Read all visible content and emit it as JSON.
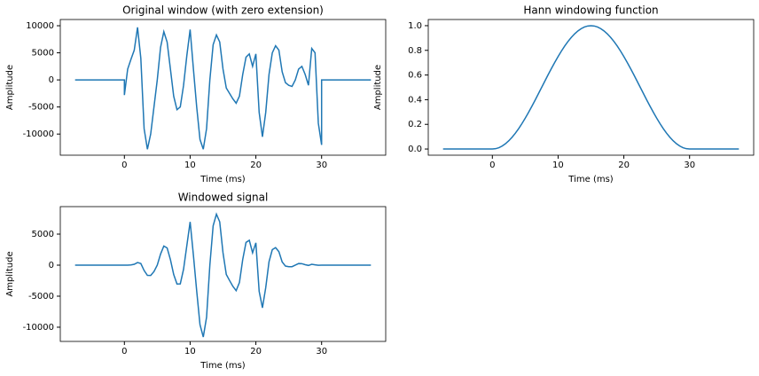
{
  "chart_data": [
    {
      "type": "line",
      "title": "Original window (with zero extension)",
      "xlabel": "Time (ms)",
      "ylabel": "Amplitude",
      "color": "#1f77b4",
      "x": [
        -7.5,
        0,
        0,
        0.5,
        1,
        1.5,
        2,
        2.5,
        3,
        3.5,
        4,
        4.5,
        5,
        5.5,
        6,
        6.5,
        7,
        7.5,
        8,
        8.5,
        9,
        9.5,
        10,
        10.5,
        11,
        11.5,
        12,
        12.5,
        13,
        13.5,
        14,
        14.5,
        15,
        15.5,
        16,
        16.5,
        17,
        17.5,
        18,
        18.5,
        19,
        19.5,
        20,
        20.5,
        21,
        21.5,
        22,
        22.5,
        23,
        23.5,
        24,
        24.5,
        25,
        25.5,
        26,
        26.5,
        27,
        27.5,
        28,
        28.5,
        29,
        29.5,
        30,
        30,
        37.5
      ],
      "values": [
        0,
        0,
        -2800,
        2000,
        3800,
        5500,
        9700,
        4000,
        -9000,
        -12800,
        -10000,
        -5000,
        0,
        6000,
        8900,
        7000,
        2000,
        -3000,
        -5500,
        -5000,
        -1000,
        4500,
        9300,
        2000,
        -5000,
        -11000,
        -12800,
        -9000,
        0,
        6500,
        8300,
        7000,
        2000,
        -1500,
        -2500,
        -3500,
        -4300,
        -3000,
        1000,
        4200,
        4800,
        2500,
        4800,
        -6000,
        -10500,
        -6000,
        1000,
        5000,
        6300,
        5500,
        1500,
        -500,
        -1000,
        -1200,
        0,
        2000,
        2500,
        1000,
        -1000,
        5800,
        5000,
        -8000,
        -12000,
        0,
        0
      ],
      "xlim": [
        -9.75,
        39.75
      ],
      "xticks": [
        0,
        10,
        20,
        30
      ],
      "ylim": [
        -13900,
        11150
      ],
      "yticks": [
        -10000,
        -5000,
        0,
        5000,
        10000
      ]
    },
    {
      "type": "line",
      "title": "Hann windowing function",
      "xlabel": "Time (ms)",
      "ylabel": "Amplitude",
      "color": "#1f77b4",
      "x": [
        -7.5,
        0,
        0,
        0.5,
        1,
        1.5,
        2,
        2.5,
        3,
        3.5,
        4,
        4.5,
        5,
        5.5,
        6,
        6.5,
        7,
        7.5,
        8,
        8.5,
        9,
        9.5,
        10,
        10.5,
        11,
        11.5,
        12,
        12.5,
        13,
        13.5,
        14,
        14.5,
        15,
        15.5,
        16,
        16.5,
        17,
        17.5,
        18,
        18.5,
        19,
        19.5,
        20,
        20.5,
        21,
        21.5,
        22,
        22.5,
        23,
        23.5,
        24,
        24.5,
        25,
        25.5,
        26,
        26.5,
        27,
        27.5,
        28,
        28.5,
        29,
        29.5,
        30,
        30,
        37.5
      ],
      "values": [
        0,
        0,
        0,
        0.0027,
        0.0109,
        0.0245,
        0.0432,
        0.067,
        0.0955,
        0.1284,
        0.1654,
        0.2061,
        0.25,
        0.2966,
        0.3455,
        0.396,
        0.4477,
        0.5,
        0.5523,
        0.604,
        0.6545,
        0.7034,
        0.75,
        0.7939,
        0.8346,
        0.8716,
        0.9045,
        0.933,
        0.9568,
        0.9755,
        0.9891,
        0.9973,
        1,
        0.9973,
        0.9891,
        0.9755,
        0.9568,
        0.933,
        0.9045,
        0.8716,
        0.8346,
        0.7939,
        0.75,
        0.7034,
        0.6545,
        0.604,
        0.5523,
        0.5,
        0.4477,
        0.396,
        0.3455,
        0.2966,
        0.25,
        0.2061,
        0.1654,
        0.1284,
        0.0955,
        0.067,
        0.0432,
        0.0245,
        0.0109,
        0.0027,
        0,
        0,
        0
      ],
      "xlim": [
        -9.75,
        39.75
      ],
      "xticks": [
        0,
        10,
        20,
        30
      ],
      "ylim": [
        -0.05,
        1.05
      ],
      "yticks": [
        {
          "value": 0,
          "label": "0.0"
        },
        0.2,
        0.4,
        0.6,
        0.8,
        {
          "value": 1,
          "label": "1.0"
        }
      ]
    },
    {
      "type": "line",
      "title": "Windowed signal",
      "xlabel": "Time (ms)",
      "ylabel": "Amplitude",
      "color": "#1f77b4",
      "x": [
        -7.5,
        0,
        0,
        0.5,
        1,
        1.5,
        2,
        2.5,
        3,
        3.5,
        4,
        4.5,
        5,
        5.5,
        6,
        6.5,
        7,
        7.5,
        8,
        8.5,
        9,
        9.5,
        10,
        10.5,
        11,
        11.5,
        12,
        12.5,
        13,
        13.5,
        14,
        14.5,
        15,
        15.5,
        16,
        16.5,
        17,
        17.5,
        18,
        18.5,
        19,
        19.5,
        20,
        20.5,
        21,
        21.5,
        22,
        22.5,
        23,
        23.5,
        24,
        24.5,
        25,
        25.5,
        26,
        26.5,
        27,
        27.5,
        28,
        28.5,
        29,
        29.5,
        30,
        30,
        37.5
      ],
      "values": [
        0,
        0,
        0,
        5,
        41,
        135,
        419,
        268,
        -860,
        -1644,
        -1654,
        -1031,
        0,
        1780,
        3075,
        2772,
        895,
        -1500,
        -3038,
        -3020,
        -655,
        3165,
        6975,
        1588,
        -4173,
        -9588,
        -11578,
        -8397,
        0,
        6341,
        8210,
        6981,
        2000,
        -1496,
        -2473,
        -3414,
        -4114,
        -2799,
        905,
        3661,
        4006,
        1985,
        3600,
        -4220,
        -6872,
        -3624,
        552,
        2500,
        2821,
        2178,
        518,
        -148,
        -250,
        -247,
        0,
        257,
        239,
        67,
        -43,
        142,
        55,
        -22,
        0,
        0,
        0
      ],
      "xlim": [
        -9.75,
        39.75
      ],
      "xticks": [
        0,
        10,
        20,
        30
      ],
      "ylim": [
        -12290,
        9430
      ],
      "yticks": [
        -10000,
        -5000,
        0,
        5000
      ]
    }
  ]
}
